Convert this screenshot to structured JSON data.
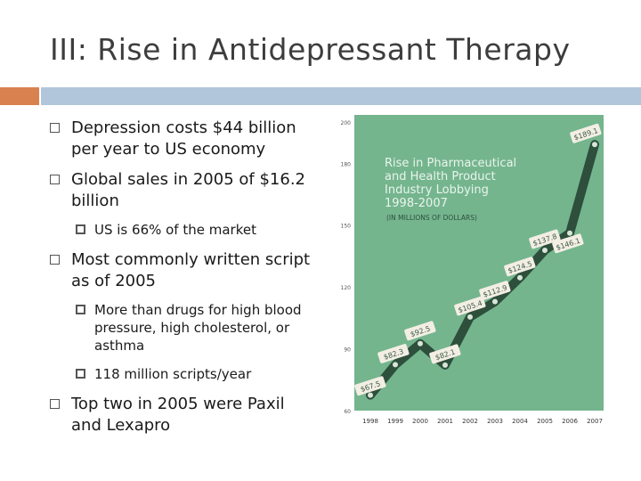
{
  "slide": {
    "title": "III: Rise in Antidepressant Therapy",
    "bullets": [
      {
        "text": "Depression costs $44 billion per year to US economy"
      },
      {
        "text": "Global sales in 2005 of $16.2 billion"
      },
      {
        "text": "US is 66% of the market",
        "sub": true
      },
      {
        "text": "Most commonly written script as of 2005"
      },
      {
        "text": "More than drugs for high blood pressure, high cholesterol, or asthma",
        "sub": true
      },
      {
        "text": "118 million scripts/year",
        "sub": true
      },
      {
        "text": "Top two in 2005 were Paxil and Lexapro"
      }
    ]
  },
  "colors": {
    "orange_bar": "#d9824f",
    "blue_bar": "#b2c6db",
    "chart_bg": "#74b58e",
    "line": "#2e4f3c",
    "label_bg": "#f3eee4"
  },
  "chart_data": {
    "type": "line",
    "title": "Rise in Pharmaceutical and Health Product Industry Lobbying 1998-2007",
    "subtitle": "(IN MILLIONS OF DOLLARS)",
    "x": [
      "1998",
      "1999",
      "2000",
      "2001",
      "2002",
      "2003",
      "2004",
      "2005",
      "2006",
      "2007"
    ],
    "values": [
      67.5,
      82.3,
      92.5,
      82.1,
      105.4,
      112.9,
      124.5,
      137.8,
      146.1,
      189.1
    ],
    "point_labels": [
      "$67.5",
      "$82.3",
      "$92.5",
      "$82.1",
      "$105.4",
      "$112.9",
      "$124.5",
      "$137.8",
      "$146.1",
      "$189.1"
    ],
    "y_ticks": [
      60,
      90,
      120,
      150,
      180,
      200
    ],
    "ylim": [
      60,
      200
    ],
    "grid": false
  }
}
